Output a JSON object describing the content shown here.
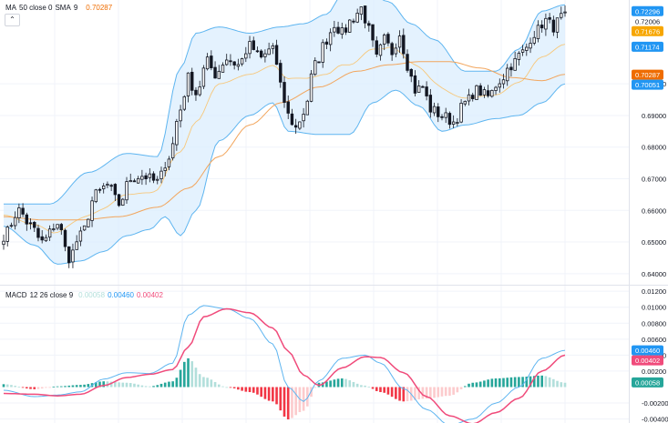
{
  "colors": {
    "up": "#26a69a",
    "down": "#131722",
    "candle_body_up": "#ffffff",
    "bb_fill": "#dbeefd",
    "bb_line": "#5eb5f0",
    "sma": "#f2a55c",
    "ma50": "#f7c77a",
    "macd_line": "#5eb5f0",
    "signal_line": "#f04b7b",
    "hist_up_strong": "#26a69a",
    "hist_up_weak": "#b2dfdb",
    "hist_down_strong": "#f23645",
    "hist_down_weak": "#fccbcd",
    "axis_text": "#131722",
    "grid": "#f0f3fa"
  },
  "indicator_legend": {
    "name": "MA",
    "params": "50 close 0",
    "sma_name": "SMA",
    "sma_len": "9",
    "value": "0.70287"
  },
  "macd_legend": {
    "name": "MACD",
    "params": "12 26 close 9",
    "hist": "0.00058",
    "macd": "0.00460",
    "signal": "0.00402"
  },
  "collapse_icon": "chevron-up-icon",
  "chart_data": [
    {
      "type": "candlestick",
      "y_ticks": [
        "0.70000",
        "0.69000",
        "0.68000",
        "0.67000",
        "0.66000",
        "0.65000",
        "0.64000"
      ],
      "ylim": [
        0.6365,
        0.7265
      ],
      "price_labels": [
        {
          "value": 0.72296,
          "text": "0.72296",
          "color": "#2196f3"
        },
        {
          "value": 0.72006,
          "text": "0.72006",
          "color": ""
        },
        {
          "value": 0.71676,
          "text": "0.71676",
          "color": "#f7a600"
        },
        {
          "value": 0.71174,
          "text": "0.71174",
          "color": "#2196f3"
        },
        {
          "value": 0.70287,
          "text": "0.70287",
          "color": "#ef6c00"
        },
        {
          "value": 0.70051,
          "text": "0.70051",
          "color": "#2196f3"
        }
      ],
      "close_anchors": [
        [
          0,
          0.652
        ],
        [
          4,
          0.66
        ],
        [
          7,
          0.655
        ],
        [
          10,
          0.65
        ],
        [
          14,
          0.656
        ],
        [
          17,
          0.645
        ],
        [
          20,
          0.652
        ],
        [
          24,
          0.665
        ],
        [
          27,
          0.668
        ],
        [
          30,
          0.662
        ],
        [
          33,
          0.67
        ],
        [
          36,
          0.671
        ],
        [
          40,
          0.669
        ],
        [
          43,
          0.677
        ],
        [
          46,
          0.692
        ],
        [
          48,
          0.702
        ],
        [
          50,
          0.697
        ],
        [
          53,
          0.707
        ],
        [
          55,
          0.703
        ],
        [
          58,
          0.708
        ],
        [
          61,
          0.706
        ],
        [
          64,
          0.712
        ],
        [
          67,
          0.708
        ],
        [
          70,
          0.712
        ],
        [
          72,
          0.699
        ],
        [
          74,
          0.69
        ],
        [
          76,
          0.686
        ],
        [
          78,
          0.691
        ],
        [
          81,
          0.706
        ],
        [
          84,
          0.714
        ],
        [
          86,
          0.719
        ],
        [
          88,
          0.716
        ],
        [
          91,
          0.721
        ],
        [
          93,
          0.724
        ],
        [
          95,
          0.717
        ],
        [
          97,
          0.708
        ],
        [
          99,
          0.714
        ],
        [
          101,
          0.71
        ],
        [
          103,
          0.716
        ],
        [
          105,
          0.706
        ],
        [
          107,
          0.698
        ],
        [
          109,
          0.699
        ],
        [
          111,
          0.692
        ],
        [
          114,
          0.69
        ],
        [
          117,
          0.688
        ],
        [
          120,
          0.694
        ],
        [
          123,
          0.698
        ],
        [
          126,
          0.696
        ],
        [
          129,
          0.701
        ],
        [
          132,
          0.706
        ],
        [
          135,
          0.71
        ],
        [
          138,
          0.716
        ],
        [
          141,
          0.72
        ],
        [
          143,
          0.718
        ],
        [
          145,
          0.721
        ]
      ],
      "bb_upper_anchors": [
        [
          0,
          0.662
        ],
        [
          12,
          0.662
        ],
        [
          22,
          0.672
        ],
        [
          32,
          0.678
        ],
        [
          40,
          0.677
        ],
        [
          46,
          0.705
        ],
        [
          50,
          0.716
        ],
        [
          56,
          0.718
        ],
        [
          64,
          0.716
        ],
        [
          72,
          0.718
        ],
        [
          78,
          0.719
        ],
        [
          84,
          0.722
        ],
        [
          88,
          0.728
        ],
        [
          96,
          0.728
        ],
        [
          100,
          0.726
        ],
        [
          106,
          0.719
        ],
        [
          112,
          0.714
        ],
        [
          120,
          0.704
        ],
        [
          128,
          0.704
        ],
        [
          134,
          0.711
        ],
        [
          140,
          0.723
        ],
        [
          146,
          0.725
        ]
      ],
      "bb_lower_anchors": [
        [
          0,
          0.655
        ],
        [
          8,
          0.649
        ],
        [
          14,
          0.643
        ],
        [
          20,
          0.644
        ],
        [
          26,
          0.647
        ],
        [
          32,
          0.652
        ],
        [
          38,
          0.654
        ],
        [
          42,
          0.658
        ],
        [
          46,
          0.652
        ],
        [
          50,
          0.66
        ],
        [
          56,
          0.682
        ],
        [
          64,
          0.69
        ],
        [
          70,
          0.694
        ],
        [
          74,
          0.685
        ],
        [
          82,
          0.684
        ],
        [
          90,
          0.684
        ],
        [
          96,
          0.694
        ],
        [
          102,
          0.698
        ],
        [
          108,
          0.693
        ],
        [
          114,
          0.685
        ],
        [
          120,
          0.687
        ],
        [
          128,
          0.689
        ],
        [
          134,
          0.69
        ],
        [
          140,
          0.694
        ],
        [
          146,
          0.7
        ]
      ],
      "ma50_anchors": [
        [
          0,
          0.658
        ],
        [
          10,
          0.657
        ],
        [
          20,
          0.657
        ],
        [
          30,
          0.658
        ],
        [
          40,
          0.661
        ],
        [
          48,
          0.667
        ],
        [
          56,
          0.677
        ],
        [
          64,
          0.687
        ],
        [
          72,
          0.694
        ],
        [
          82,
          0.699
        ],
        [
          92,
          0.704
        ],
        [
          100,
          0.706
        ],
        [
          108,
          0.707
        ],
        [
          116,
          0.707
        ],
        [
          124,
          0.705
        ],
        [
          132,
          0.702
        ],
        [
          140,
          0.701
        ],
        [
          146,
          0.703
        ]
      ],
      "n_candles": 147
    },
    {
      "type": "macd",
      "y_ticks": [
        "0.01200",
        "0.01000",
        "0.00800",
        "0.00600",
        "0.00400",
        "0.00200",
        "-0.00200",
        "-0.00400"
      ],
      "ylim": [
        -0.0045,
        0.0127
      ],
      "value_labels": [
        {
          "value": 0.0046,
          "text": "0.00460",
          "color": "#2196f3"
        },
        {
          "value": 0.00402,
          "text": "0.00402",
          "color": "#f04b7b"
        },
        {
          "value": 0.00058,
          "text": "0.00058",
          "color": "#26a69a"
        }
      ],
      "macd_anchors": [
        [
          0,
          -0.0004
        ],
        [
          8,
          -0.0012
        ],
        [
          14,
          -0.001
        ],
        [
          20,
          -0.0006
        ],
        [
          26,
          0.001
        ],
        [
          32,
          0.0018
        ],
        [
          38,
          0.0017
        ],
        [
          44,
          0.003
        ],
        [
          48,
          0.009
        ],
        [
          52,
          0.0102
        ],
        [
          58,
          0.0098
        ],
        [
          64,
          0.0086
        ],
        [
          70,
          0.0054
        ],
        [
          74,
          0.0
        ],
        [
          78,
          -0.0018
        ],
        [
          82,
          0.0008
        ],
        [
          88,
          0.0036
        ],
        [
          94,
          0.004
        ],
        [
          98,
          0.003
        ],
        [
          104,
          -0.0002
        ],
        [
          110,
          -0.0028
        ],
        [
          116,
          -0.0048
        ],
        [
          122,
          -0.004
        ],
        [
          128,
          -0.002
        ],
        [
          134,
          0.0
        ],
        [
          140,
          0.0036
        ],
        [
          146,
          0.0046
        ]
      ],
      "signal_anchors": [
        [
          0,
          -0.0008
        ],
        [
          8,
          -0.0009
        ],
        [
          14,
          -0.0011
        ],
        [
          20,
          -0.0009
        ],
        [
          26,
          0.0002
        ],
        [
          32,
          0.0012
        ],
        [
          38,
          0.0016
        ],
        [
          44,
          0.0022
        ],
        [
          48,
          0.005
        ],
        [
          52,
          0.0088
        ],
        [
          58,
          0.0098
        ],
        [
          64,
          0.0093
        ],
        [
          70,
          0.0074
        ],
        [
          74,
          0.0045
        ],
        [
          78,
          0.0015
        ],
        [
          82,
          0.0002
        ],
        [
          88,
          0.0024
        ],
        [
          94,
          0.0038
        ],
        [
          98,
          0.0037
        ],
        [
          104,
          0.0018
        ],
        [
          110,
          -0.0012
        ],
        [
          116,
          -0.0036
        ],
        [
          122,
          -0.0046
        ],
        [
          128,
          -0.0032
        ],
        [
          134,
          -0.0014
        ],
        [
          140,
          0.002
        ],
        [
          146,
          0.004
        ]
      ],
      "n_bars": 147
    }
  ]
}
